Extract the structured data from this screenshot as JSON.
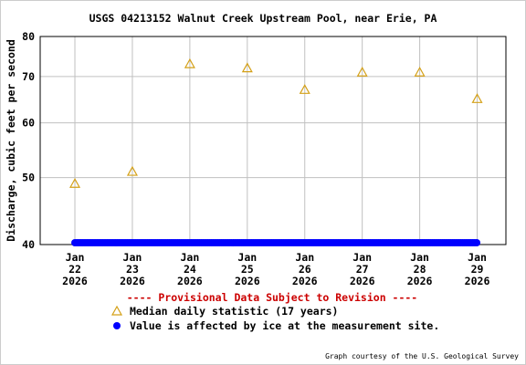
{
  "chart_data": {
    "type": "scatter",
    "title": "USGS 04213152 Walnut Creek Upstream Pool, near Erie, PA",
    "ylabel": "Discharge, cubic feet per second",
    "xlabel": "",
    "y_scale": "log",
    "ylim": [
      40,
      80
    ],
    "y_ticks": [
      40,
      50,
      60,
      70,
      80
    ],
    "x_ticks": [
      {
        "x": "2026-01-22",
        "label": [
          "Jan",
          "22",
          "2026"
        ]
      },
      {
        "x": "2026-01-23",
        "label": [
          "Jan",
          "23",
          "2026"
        ]
      },
      {
        "x": "2026-01-24",
        "label": [
          "Jan",
          "24",
          "2026"
        ]
      },
      {
        "x": "2026-01-25",
        "label": [
          "Jan",
          "25",
          "2026"
        ]
      },
      {
        "x": "2026-01-26",
        "label": [
          "Jan",
          "26",
          "2026"
        ]
      },
      {
        "x": "2026-01-27",
        "label": [
          "Jan",
          "27",
          "2026"
        ]
      },
      {
        "x": "2026-01-28",
        "label": [
          "Jan",
          "28",
          "2026"
        ]
      },
      {
        "x": "2026-01-29",
        "label": [
          "Jan",
          "29",
          "2026"
        ]
      }
    ],
    "xlim": [
      "2026-01-21T09:30",
      "2026-01-29T12:00"
    ],
    "grid": true,
    "series": [
      {
        "name": "Median daily statistic (17 years)",
        "marker": "triangle-open",
        "color": "#d4a017",
        "points": [
          {
            "x": "2026-01-22",
            "y": 49
          },
          {
            "x": "2026-01-23",
            "y": 51
          },
          {
            "x": "2026-01-24",
            "y": 73
          },
          {
            "x": "2026-01-25",
            "y": 72
          },
          {
            "x": "2026-01-26",
            "y": 67
          },
          {
            "x": "2026-01-27",
            "y": 71
          },
          {
            "x": "2026-01-28",
            "y": 71
          },
          {
            "x": "2026-01-29",
            "y": 65
          }
        ]
      },
      {
        "name": "Value is affected by ice at the measurement site.",
        "marker": "dot",
        "color": "#0000ff",
        "x_range": [
          "2026-01-22",
          "2026-01-29"
        ],
        "y": 40
      }
    ],
    "legend": {
      "provisional": "---- Provisional Data Subject to Revision ----",
      "provisional_color": "#cc0000",
      "items": [
        {
          "marker": "triangle-open",
          "color": "#d4a017",
          "label": "Median daily statistic (17 years)"
        },
        {
          "marker": "dot",
          "color": "#0000ff",
          "label": "Value is affected by ice at the measurement site."
        }
      ]
    },
    "credit": "Graph courtesy of the U.S. Geological Survey"
  }
}
